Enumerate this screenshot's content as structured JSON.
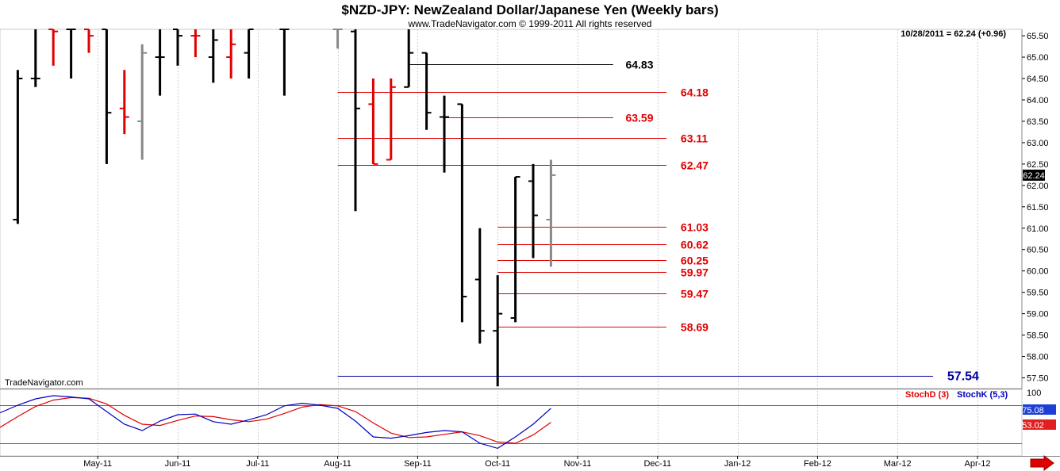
{
  "header": {
    "title": "$NZD-JPY:  NewZealand Dollar/Japanese Yen  (Weekly bars)",
    "copyright": "www.TradeNavigator.com © 1999-2011 All rights reserved",
    "last_quote": "10/28/2011 = 62.24 (+0.96)",
    "watermark": "TradeNavigator.com"
  },
  "colors": {
    "up": "#000000",
    "down": "#e00000",
    "current": "#888888",
    "stoch_k": "#0000c0",
    "stoch_d": "#e00000",
    "blue_level": "#0000a0",
    "price_badge": "#000000",
    "k_badge": "#1c3fd8",
    "d_badge": "#e02020"
  },
  "chart_data": {
    "type": "ohlc",
    "price_axis": {
      "ylim": [
        57.25,
        65.65
      ],
      "ticks": [
        "57.50",
        "58.00",
        "58.50",
        "59.00",
        "59.50",
        "60.00",
        "60.50",
        "61.00",
        "61.50",
        "62.00",
        "62.50",
        "63.00",
        "63.50",
        "64.00",
        "64.50",
        "65.00",
        "65.50"
      ],
      "current_label": "62.24",
      "current_value": 62.24
    },
    "x_axis": {
      "labels": [
        "May-11",
        "Jun-11",
        "Jul-11",
        "Aug-11",
        "Sep-11",
        "Oct-11",
        "Nov-11",
        "Dec-11",
        "Jan-12",
        "Feb-12",
        "Mar-12",
        "Apr-12"
      ],
      "label_weeks": [
        4.5,
        9,
        13.5,
        18,
        22.5,
        27,
        31.5,
        36,
        40.5,
        45,
        49.5,
        54
      ],
      "week_range": [
        -1,
        56.5
      ]
    },
    "bars": [
      {
        "w": 0,
        "o": 61.2,
        "h": 64.7,
        "l": 61.1,
        "c": 64.5,
        "col": "up"
      },
      {
        "w": 1,
        "o": 64.5,
        "h": 66.0,
        "l": 64.3,
        "c": 64.5,
        "col": "up"
      },
      {
        "w": 2,
        "o": 65.7,
        "h": 66.0,
        "l": 64.8,
        "c": 65.6,
        "col": "down"
      },
      {
        "w": 3,
        "o": 65.7,
        "h": 66.0,
        "l": 64.5,
        "c": 65.7,
        "col": "up"
      },
      {
        "w": 4,
        "o": 65.7,
        "h": 66.0,
        "l": 65.1,
        "c": 65.5,
        "col": "down"
      },
      {
        "w": 5,
        "o": 65.8,
        "h": 66.0,
        "l": 62.5,
        "c": 63.7,
        "col": "up"
      },
      {
        "w": 6,
        "o": 63.8,
        "h": 64.7,
        "l": 63.2,
        "c": 63.6,
        "col": "down"
      },
      {
        "w": 7,
        "o": 63.5,
        "h": 65.3,
        "l": 62.6,
        "c": 65.1,
        "col": "current"
      },
      {
        "w": 8,
        "o": 65.0,
        "h": 66.0,
        "l": 64.1,
        "c": 65.0,
        "col": "up"
      },
      {
        "w": 9,
        "o": 65.8,
        "h": 66.0,
        "l": 64.8,
        "c": 65.5,
        "col": "up"
      },
      {
        "w": 10,
        "o": 65.5,
        "h": 66.0,
        "l": 65.0,
        "c": 65.5,
        "col": "down"
      },
      {
        "w": 11,
        "o": 65.0,
        "h": 66.0,
        "l": 64.4,
        "c": 65.4,
        "col": "up"
      },
      {
        "w": 12,
        "o": 65.0,
        "h": 66.0,
        "l": 64.5,
        "c": 65.3,
        "col": "down"
      },
      {
        "w": 13,
        "o": 65.1,
        "h": 66.0,
        "l": 64.5,
        "c": 65.9,
        "col": "up"
      },
      {
        "w": 15,
        "o": 65.8,
        "h": 66.0,
        "l": 64.1,
        "c": 65.8,
        "col": "up"
      },
      {
        "w": 18,
        "o": 65.7,
        "h": 66.0,
        "l": 65.2,
        "c": 65.8,
        "col": "current"
      },
      {
        "w": 19,
        "o": 65.6,
        "h": 66.0,
        "l": 61.4,
        "c": 63.8,
        "col": "up"
      },
      {
        "w": 20,
        "o": 63.9,
        "h": 64.5,
        "l": 62.5,
        "c": 62.5,
        "col": "down"
      },
      {
        "w": 21,
        "o": 62.6,
        "h": 64.5,
        "l": 62.6,
        "c": 64.3,
        "col": "down"
      },
      {
        "w": 22,
        "o": 64.3,
        "h": 66.0,
        "l": 64.3,
        "c": 65.1,
        "col": "up"
      },
      {
        "w": 23,
        "o": 65.1,
        "h": 65.1,
        "l": 63.3,
        "c": 63.7,
        "col": "up"
      },
      {
        "w": 24,
        "o": 63.6,
        "h": 64.1,
        "l": 62.3,
        "c": 63.6,
        "col": "up"
      },
      {
        "w": 25,
        "o": 63.9,
        "h": 63.9,
        "l": 58.8,
        "c": 59.4,
        "col": "up"
      },
      {
        "w": 26,
        "o": 59.8,
        "h": 61.0,
        "l": 58.3,
        "c": 58.6,
        "col": "up"
      },
      {
        "w": 27,
        "o": 58.6,
        "h": 59.9,
        "l": 57.3,
        "c": 59.0,
        "col": "up"
      },
      {
        "w": 28,
        "o": 58.9,
        "h": 62.2,
        "l": 58.8,
        "c": 62.2,
        "col": "up"
      },
      {
        "w": 29,
        "o": 62.1,
        "h": 62.5,
        "l": 60.3,
        "c": 61.3,
        "col": "up"
      },
      {
        "w": 30,
        "o": 61.2,
        "h": 62.6,
        "l": 60.1,
        "c": 62.24,
        "col": "current"
      }
    ],
    "levels": [
      {
        "value": 64.83,
        "label": "64.83",
        "color": "#000000",
        "w_start": 22,
        "w_end": 33.5,
        "label_w": 34.2
      },
      {
        "value": 64.18,
        "label": "64.18",
        "color": "#e00000",
        "w_start": 18,
        "w_end": 36.5,
        "label_w": 37.3
      },
      {
        "value": 63.59,
        "label": "63.59",
        "color": "#e00000",
        "w_start": 24,
        "w_end": 33.5,
        "label_w": 34.2
      },
      {
        "value": 63.11,
        "label": "63.11",
        "color": "#e00000",
        "w_start": 18,
        "w_end": 36.5,
        "label_w": 37.3
      },
      {
        "value": 62.47,
        "label": "62.47",
        "color": "#e00000",
        "w_start": 18,
        "w_end": 36.5,
        "label_w": 37.3
      },
      {
        "value": 61.03,
        "label": "61.03",
        "color": "#e00000",
        "w_start": 27,
        "w_end": 36.5,
        "label_w": 37.3
      },
      {
        "value": 60.62,
        "label": "60.62",
        "color": "#e00000",
        "w_start": 27,
        "w_end": 36.5,
        "label_w": 37.3
      },
      {
        "value": 60.25,
        "label": "60.25",
        "color": "#e00000",
        "w_start": 27,
        "w_end": 36.5,
        "label_w": 37.3
      },
      {
        "value": 59.97,
        "label": "59.97",
        "color": "#e00000",
        "w_start": 27,
        "w_end": 36.5,
        "label_w": 37.3
      },
      {
        "value": 59.47,
        "label": "59.47",
        "color": "#e00000",
        "w_start": 27,
        "w_end": 36.5,
        "label_w": 37.3
      },
      {
        "value": 58.69,
        "label": "58.69",
        "color": "#e00000",
        "w_start": 27,
        "w_end": 36.5,
        "label_w": 37.3
      },
      {
        "value": 57.54,
        "label": "57.54",
        "color": "#0000a0",
        "w_start": 18,
        "w_end": 51.5,
        "label_w": 52.3
      }
    ],
    "stochastic": {
      "ylim": [
        0,
        105
      ],
      "tick_label": "100",
      "legend_d": "StochD (3)",
      "legend_k": "StochK (5,3)",
      "k_badge": "75.08",
      "d_badge": "53.02",
      "upper_line": 80,
      "lower_line": 20,
      "k": [
        [
          -1,
          68
        ],
        [
          0,
          80
        ],
        [
          1,
          90
        ],
        [
          2,
          95
        ],
        [
          3,
          93
        ],
        [
          4,
          90
        ],
        [
          5,
          70
        ],
        [
          6,
          50
        ],
        [
          7,
          40
        ],
        [
          8,
          55
        ],
        [
          9,
          65
        ],
        [
          10,
          66
        ],
        [
          11,
          54
        ],
        [
          12,
          50
        ],
        [
          13,
          57
        ],
        [
          14,
          65
        ],
        [
          15,
          79
        ],
        [
          16,
          83
        ],
        [
          17,
          80
        ],
        [
          18,
          75
        ],
        [
          19,
          55
        ],
        [
          20,
          30
        ],
        [
          21,
          28
        ],
        [
          22,
          32
        ],
        [
          23,
          37
        ],
        [
          24,
          40
        ],
        [
          25,
          38
        ],
        [
          26,
          20
        ],
        [
          27,
          12
        ],
        [
          28,
          30
        ],
        [
          29,
          50
        ],
        [
          30,
          75.08
        ]
      ],
      "d": [
        [
          -1,
          45
        ],
        [
          0,
          62
        ],
        [
          1,
          78
        ],
        [
          2,
          88
        ],
        [
          3,
          92
        ],
        [
          4,
          91
        ],
        [
          5,
          82
        ],
        [
          6,
          64
        ],
        [
          7,
          50
        ],
        [
          8,
          48
        ],
        [
          9,
          56
        ],
        [
          10,
          63
        ],
        [
          11,
          62
        ],
        [
          12,
          57
        ],
        [
          13,
          54
        ],
        [
          14,
          58
        ],
        [
          15,
          67
        ],
        [
          16,
          77
        ],
        [
          17,
          81
        ],
        [
          18,
          79
        ],
        [
          19,
          70
        ],
        [
          20,
          52
        ],
        [
          21,
          36
        ],
        [
          22,
          29
        ],
        [
          23,
          30
        ],
        [
          24,
          34
        ],
        [
          25,
          38
        ],
        [
          26,
          32
        ],
        [
          27,
          22
        ],
        [
          28,
          20
        ],
        [
          29,
          33
        ],
        [
          30,
          53.02
        ]
      ]
    }
  }
}
